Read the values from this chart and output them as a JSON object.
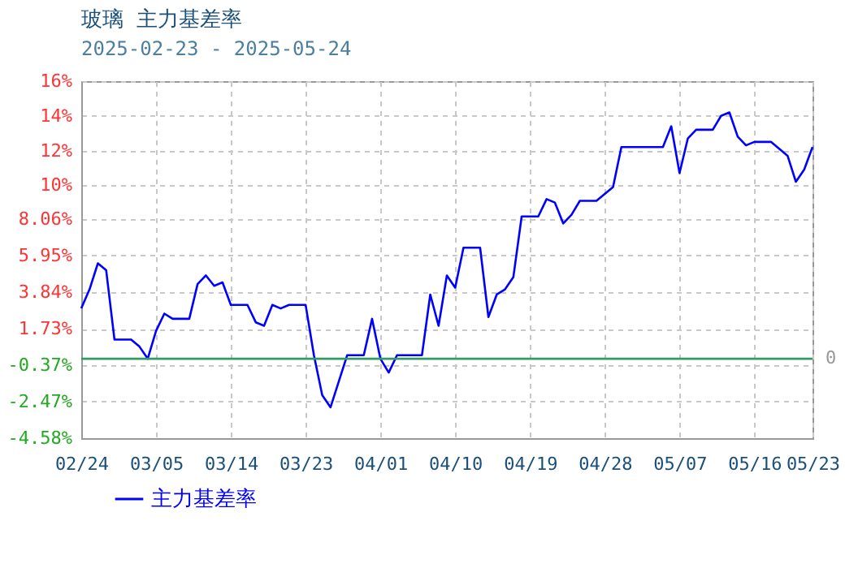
{
  "chart_data": {
    "type": "line",
    "title": "玻璃 主力基差率",
    "subtitle": "2025-02-23 - 2025-05-24",
    "x": [
      "2025-02-24",
      "2025-02-25",
      "2025-02-26",
      "2025-02-27",
      "2025-02-28",
      "2025-03-02",
      "2025-03-03",
      "2025-03-04",
      "2025-03-05",
      "2025-03-06",
      "2025-03-07",
      "2025-03-09",
      "2025-03-10",
      "2025-03-11",
      "2025-03-12",
      "2025-03-13",
      "2025-03-14",
      "2025-03-16",
      "2025-03-17",
      "2025-03-18",
      "2025-03-19",
      "2025-03-20",
      "2025-03-21",
      "2025-03-23",
      "2025-03-24",
      "2025-03-25",
      "2025-03-26",
      "2025-03-28",
      "2025-03-30",
      "2025-03-31",
      "2025-04-01",
      "2025-04-02",
      "2025-04-03",
      "2025-04-06",
      "2025-04-07",
      "2025-04-08",
      "2025-04-09",
      "2025-04-10",
      "2025-04-11",
      "2025-04-13",
      "2025-04-14",
      "2025-04-15",
      "2025-04-16",
      "2025-04-17",
      "2025-04-18",
      "2025-04-20",
      "2025-04-21",
      "2025-04-22",
      "2025-04-23",
      "2025-04-24",
      "2025-04-25",
      "2025-04-27",
      "2025-04-29",
      "2025-04-30",
      "2025-05-05",
      "2025-05-06",
      "2025-05-07",
      "2025-05-08",
      "2025-05-09",
      "2025-05-11",
      "2025-05-12",
      "2025-05-13",
      "2025-05-14",
      "2025-05-15",
      "2025-05-16",
      "2025-05-18",
      "2025-05-20",
      "2025-05-21",
      "2025-05-22",
      "2025-05-23"
    ],
    "series": [
      {
        "name": "主力基差率",
        "color": "#0000ff",
        "values": [
          2.9,
          4.0,
          5.5,
          5.1,
          1.1,
          1.1,
          0.7,
          0.0,
          1.6,
          2.6,
          2.3,
          2.3,
          4.3,
          4.8,
          4.2,
          4.4,
          3.1,
          3.1,
          2.1,
          1.9,
          3.1,
          2.9,
          3.1,
          3.1,
          0.2,
          -2.1,
          -2.8,
          0.2,
          0.2,
          2.3,
          0.0,
          -0.8,
          0.2,
          0.2,
          3.7,
          1.9,
          4.8,
          4.1,
          6.4,
          6.4,
          2.4,
          3.7,
          4.0,
          4.7,
          8.2,
          8.2,
          9.2,
          9.0,
          7.8,
          8.3,
          9.1,
          9.1,
          9.9,
          12.2,
          12.2,
          13.4,
          10.7,
          12.7,
          13.2,
          13.2,
          14.0,
          14.2,
          12.8,
          12.3,
          12.5,
          12.5,
          11.7,
          10.2,
          10.9,
          12.2
        ]
      }
    ],
    "xlim": [
      "2025-02-24",
      "2025-05-23"
    ],
    "xticks": [
      {
        "value": "2025-02-24",
        "label": "02/24"
      },
      {
        "value": "2025-03-05",
        "label": "03/05"
      },
      {
        "value": "2025-03-14",
        "label": "03/14"
      },
      {
        "value": "2025-03-23",
        "label": "03/23"
      },
      {
        "value": "2025-04-01",
        "label": "04/01"
      },
      {
        "value": "2025-04-10",
        "label": "04/10"
      },
      {
        "value": "2025-04-19",
        "label": "04/19"
      },
      {
        "value": "2025-04-28",
        "label": "04/28"
      },
      {
        "value": "2025-05-07",
        "label": "05/07"
      },
      {
        "value": "2025-05-16",
        "label": "05/16"
      },
      {
        "value": "2025-05-23",
        "label": "05/23"
      }
    ],
    "ylim": [
      -4.58,
      16
    ],
    "yticks": [
      {
        "value": 16,
        "label": "16%"
      },
      {
        "value": 14,
        "label": "14%"
      },
      {
        "value": 12,
        "label": "12%"
      },
      {
        "value": 10,
        "label": "10%"
      },
      {
        "value": 8.06,
        "label": "8.06%"
      },
      {
        "value": 5.95,
        "label": "5.95%"
      },
      {
        "value": 3.84,
        "label": "3.84%"
      },
      {
        "value": 1.73,
        "label": "1.73%"
      },
      {
        "value": -0.37,
        "label": "-0.37%"
      },
      {
        "value": -2.47,
        "label": "-2.47%"
      },
      {
        "value": -4.58,
        "label": "-4.58%"
      }
    ],
    "ref_lines": [
      {
        "axis": "y",
        "value": 0,
        "label": "0",
        "color": "#339966"
      }
    ],
    "grid": true,
    "legend": "bottom left",
    "marker": "none",
    "line_style": "solid"
  }
}
